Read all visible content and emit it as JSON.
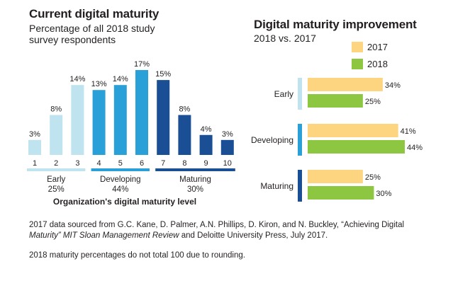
{
  "left": {
    "title": "Current digital maturity",
    "subtitle_line1": "Percentage of all 2018 study",
    "subtitle_line2": "survey respondents",
    "xlabel": "Organization's digital maturity level",
    "groups": [
      {
        "name": "Early",
        "pct": "25%"
      },
      {
        "name": "Developing",
        "pct": "44%"
      },
      {
        "name": "Maturing",
        "pct": "30%"
      }
    ]
  },
  "right": {
    "title": "Digital maturity improvement",
    "subtitle": "2018 vs. 2017",
    "legend": [
      "2017",
      "2018"
    ]
  },
  "footnote": {
    "part1": "2017 data sourced from G.C. Kane, D. Palmer, A.N. Phillips, D. Kiron, and N. Buckley, “Achieving Digital",
    "part2_italic": "Maturity” MIT Sloan Management Review",
    "part3": " and Deloitte University Press, July 2017.",
    "note": "2018 maturity percentages do not total 100 due to rounding."
  },
  "colors": {
    "early": "#bfe3ef",
    "developing": "#2aa0d8",
    "maturing": "#1a4f96",
    "y2017": "#fdd47f",
    "y2018": "#8dc640"
  },
  "chart_data": [
    {
      "type": "bar",
      "title": "Current digital maturity",
      "subtitle": "Percentage of all 2018 study survey respondents",
      "xlabel": "Organization's digital maturity level",
      "ylabel": "",
      "categories": [
        "1",
        "2",
        "3",
        "4",
        "5",
        "6",
        "7",
        "8",
        "9",
        "10"
      ],
      "values": [
        3,
        8,
        14,
        13,
        14,
        17,
        15,
        8,
        4,
        3
      ],
      "value_labels": [
        "3%",
        "8%",
        "14%",
        "13%",
        "14%",
        "17%",
        "15%",
        "8%",
        "4%",
        "3%"
      ],
      "groups": [
        "Early",
        "Early",
        "Early",
        "Developing",
        "Developing",
        "Developing",
        "Maturing",
        "Maturing",
        "Maturing",
        "Maturing"
      ],
      "ylim": [
        0,
        17
      ],
      "grid": false
    },
    {
      "type": "bar",
      "orientation": "horizontal",
      "title": "Digital maturity improvement",
      "subtitle": "2018 vs. 2017",
      "categories": [
        "Early",
        "Developing",
        "Maturing"
      ],
      "series": [
        {
          "name": "2017",
          "values": [
            34,
            41,
            25
          ],
          "value_labels": [
            "34%",
            "41%",
            "25%"
          ]
        },
        {
          "name": "2018",
          "values": [
            25,
            44,
            30
          ],
          "value_labels": [
            "25%",
            "44%",
            "30%"
          ]
        }
      ],
      "xlim": [
        0,
        44
      ],
      "legend": "top-right",
      "grid": false
    }
  ]
}
